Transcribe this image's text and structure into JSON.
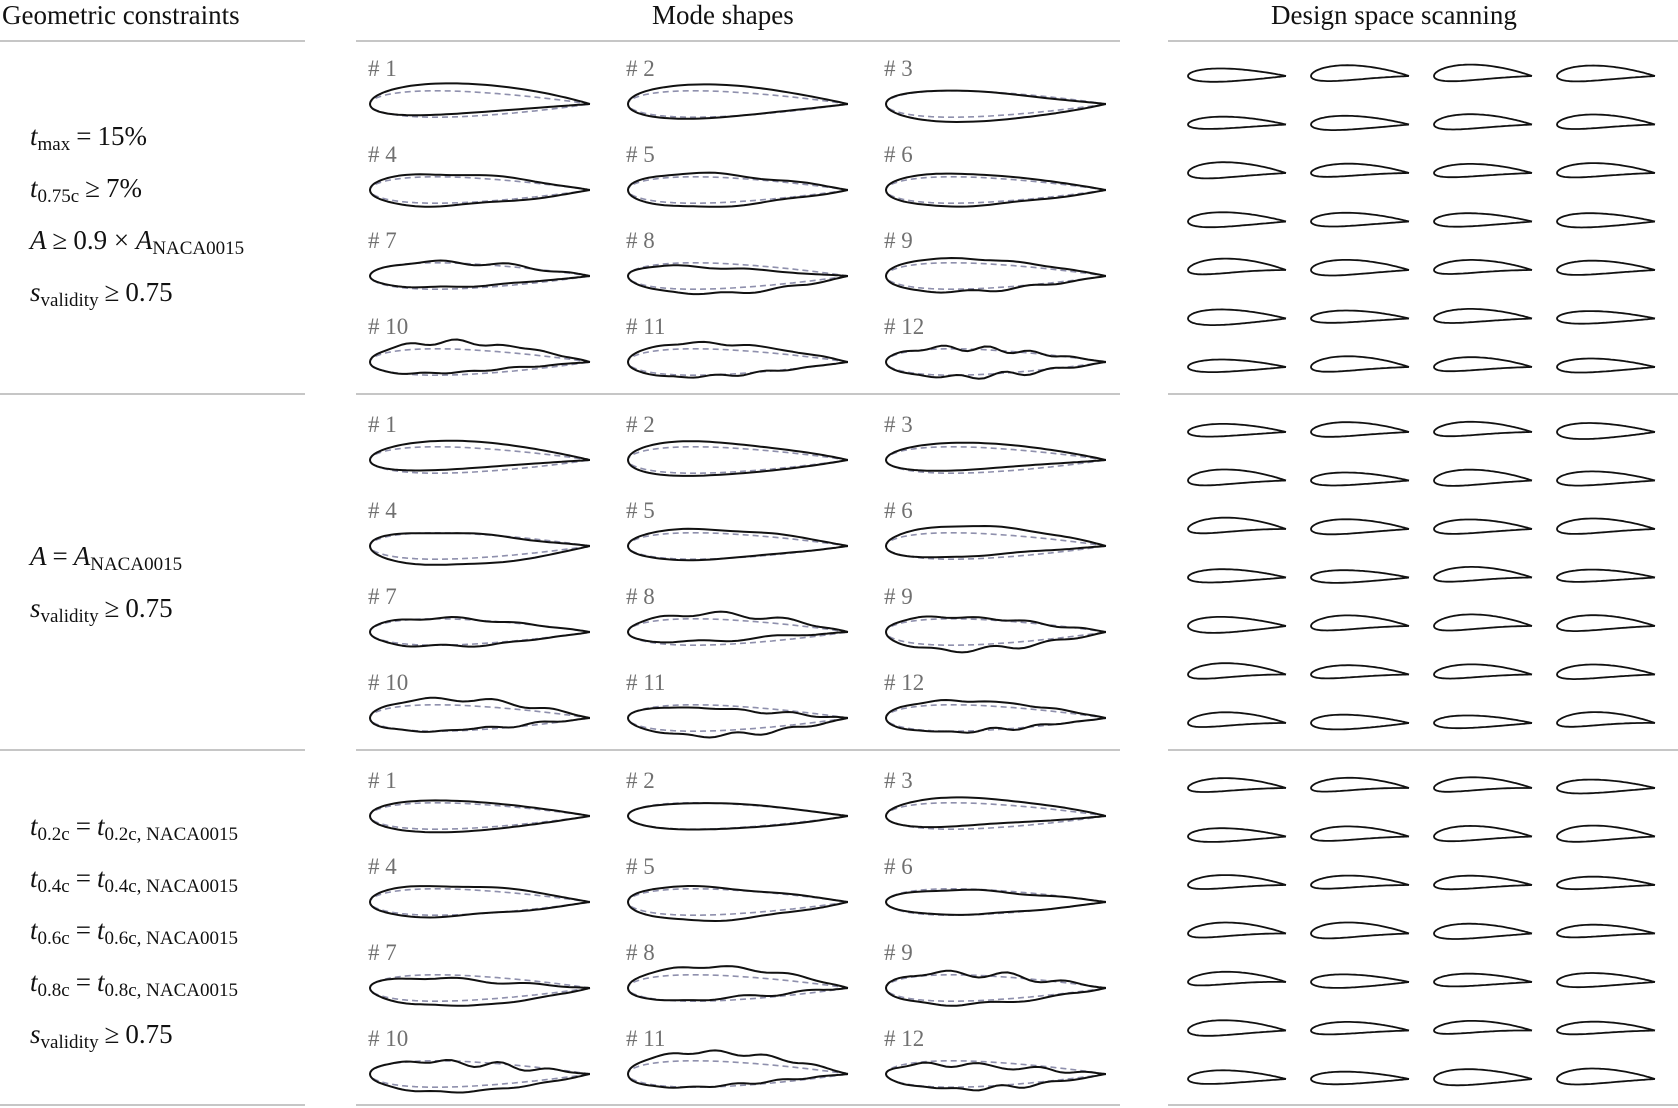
{
  "headers": {
    "constraints": "Geometric constraints",
    "modes": "Mode shapes",
    "scan": "Design space scanning"
  },
  "rows": [
    {
      "constraints": [
        {
          "var": "t",
          "sub": "max",
          "op": "=",
          "rhs": "15%"
        },
        {
          "var": "t",
          "sub": "0.75c",
          "op": "≥",
          "rhs": "7%"
        },
        {
          "var": "A",
          "sub": "",
          "op": "≥",
          "rhs": "0.9 × ",
          "rhs_var": "A",
          "rhs_sub": "NACA0015"
        },
        {
          "var": "s",
          "sub": "validity",
          "op": "≥",
          "rhs": "0.75"
        }
      ],
      "modes": [
        "# 1",
        "# 2",
        "# 3",
        "# 4",
        "# 5",
        "# 6",
        "# 7",
        "# 8",
        "# 9",
        "# 10",
        "# 11",
        "# 12"
      ]
    },
    {
      "constraints": [
        {
          "var": "A",
          "sub": "",
          "op": "=",
          "rhs": "",
          "rhs_var": "A",
          "rhs_sub": "NACA0015"
        },
        {
          "var": "s",
          "sub": "validity",
          "op": "≥",
          "rhs": "0.75"
        }
      ],
      "modes": [
        "# 1",
        "# 2",
        "# 3",
        "# 4",
        "# 5",
        "# 6",
        "# 7",
        "# 8",
        "# 9",
        "# 10",
        "# 11",
        "# 12"
      ]
    },
    {
      "constraints": [
        {
          "var": "t",
          "sub": "0.2c",
          "op": "=",
          "rhs": "",
          "rhs_var": "t",
          "rhs_sub": "0.2c, NACA0015"
        },
        {
          "var": "t",
          "sub": "0.4c",
          "op": "=",
          "rhs": "",
          "rhs_var": "t",
          "rhs_sub": "0.4c, NACA0015"
        },
        {
          "var": "t",
          "sub": "0.6c",
          "op": "=",
          "rhs": "",
          "rhs_var": "t",
          "rhs_sub": "0.6c, NACA0015"
        },
        {
          "var": "t",
          "sub": "0.8c",
          "op": "=",
          "rhs": "",
          "rhs_var": "t",
          "rhs_sub": "0.8c, NACA0015"
        },
        {
          "var": "s",
          "sub": "validity",
          "op": "≥",
          "rhs": "0.75"
        }
      ],
      "modes": [
        "# 1",
        "# 2",
        "# 3",
        "# 4",
        "# 5",
        "# 6",
        "# 7",
        "# 8",
        "# 9",
        "# 10",
        "# 11",
        "# 12"
      ]
    }
  ],
  "colors": {
    "shape": "#111111",
    "reference": "#8f90ad",
    "rule": "#c6c6c6",
    "label": "#707070"
  }
}
